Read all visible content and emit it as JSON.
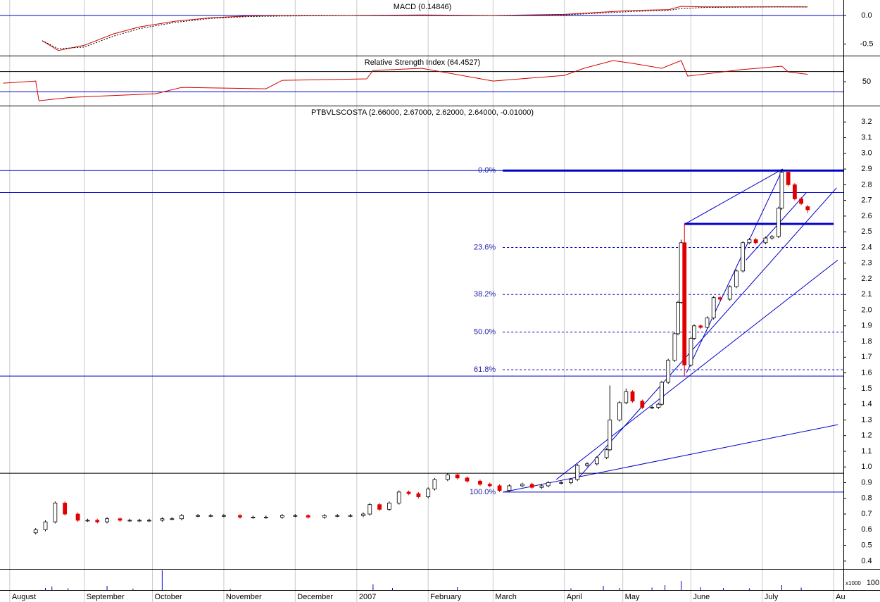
{
  "chart_data": [
    {
      "type": "line",
      "title": "MACD (0.14846)",
      "xlim": [
        -11,
        249
      ],
      "ylim": [
        -0.7,
        0.27
      ],
      "yticks": [
        {
          "value": 0,
          "label": "0.0"
        },
        -0.5
      ],
      "zero_line": 0,
      "x": [
        2,
        7,
        15,
        24,
        32,
        43,
        54,
        65,
        76,
        97,
        119,
        141,
        163,
        184,
        195,
        199,
        206,
        228,
        238
      ],
      "series": [
        {
          "name": "MACD",
          "color": "#d40000",
          "dash": false,
          "values": [
            -0.44,
            -0.61,
            -0.52,
            -0.32,
            -0.2,
            -0.1,
            -0.04,
            -0.01,
            0,
            0,
            0.01,
            0,
            0.02,
            0.09,
            0.1,
            0.16,
            0.15,
            0.15,
            0.148
          ]
        },
        {
          "name": "Signal",
          "color": "#000000",
          "dash": true,
          "values": [
            -0.44,
            -0.58,
            -0.55,
            -0.36,
            -0.23,
            -0.12,
            -0.05,
            -0.02,
            -0.01,
            0,
            0,
            0,
            0.01,
            0.07,
            0.09,
            0.12,
            0.14,
            0.15,
            0.15
          ]
        }
      ]
    },
    {
      "type": "line",
      "title": "Relative Strength Index (64.4527)",
      "xlim": [
        -11,
        249
      ],
      "ylim": [
        3,
        100
      ],
      "yticks": [
        50
      ],
      "levels": [
        70,
        30
      ],
      "x": [
        -10,
        0,
        1,
        11,
        37,
        45,
        71,
        76,
        102,
        104,
        119,
        141,
        163,
        169,
        178,
        184,
        193,
        199,
        201,
        217,
        230,
        232,
        238
      ],
      "series": [
        {
          "name": "RSI",
          "color": "#d40000",
          "dash": false,
          "values": [
            47.2,
            51.4,
            12.5,
            19.4,
            26.4,
            38.9,
            36.1,
            52.8,
            55.6,
            72.2,
            76.4,
            51.4,
            62.5,
            76.4,
            91.7,
            86.1,
            76.4,
            91.7,
            61.1,
            73.6,
            80.6,
            69.4,
            64.5
          ]
        }
      ]
    },
    {
      "type": "candlestick",
      "title": "PTBVLSCOSTA (2.66000, 2.67000, 2.62000, 2.64000, -0.01000)",
      "xlim": [
        -11,
        249
      ],
      "ylim": [
        0.35,
        3.3
      ],
      "yticks": [
        3.2,
        3.1,
        {
          "value": 3,
          "label": "3.0"
        },
        2.9,
        2.8,
        2.7,
        2.6,
        2.5,
        2.4,
        2.3,
        2.2,
        2.1,
        {
          "value": 2,
          "label": "2.0"
        },
        1.9,
        1.8,
        1.7,
        1.6,
        1.5,
        1.4,
        1.3,
        1.2,
        1.1,
        {
          "value": 1,
          "label": "1.0"
        },
        0.9,
        0.8,
        0.7,
        0.6,
        0.5,
        0.4
      ],
      "x": [
        0,
        3,
        6,
        9,
        13,
        16,
        19,
        22,
        26,
        29,
        32,
        35,
        39,
        42,
        45,
        50,
        54,
        58,
        63,
        67,
        71,
        76,
        80,
        84,
        89,
        93,
        97,
        101,
        103,
        106,
        109,
        112,
        115,
        118,
        121,
        123,
        127,
        130,
        133,
        137,
        140,
        143,
        146,
        150,
        153,
        156,
        158,
        162,
        165,
        167,
        170,
        173,
        176,
        177,
        180,
        182,
        184,
        187,
        190,
        192,
        193,
        195,
        197,
        198,
        199,
        200,
        202,
        203,
        205,
        207,
        209,
        211,
        214,
        216,
        218,
        220,
        222,
        225,
        227,
        229,
        230,
        232,
        234,
        236,
        238
      ],
      "open": [
        0.58,
        0.6,
        0.65,
        0.77,
        0.7,
        0.66,
        0.66,
        0.65,
        0.67,
        0.66,
        0.66,
        0.66,
        0.66,
        0.67,
        0.67,
        0.69,
        0.69,
        0.69,
        0.69,
        0.68,
        0.68,
        0.68,
        0.69,
        0.69,
        0.68,
        0.69,
        0.69,
        0.69,
        0.7,
        0.76,
        0.73,
        0.77,
        0.84,
        0.83,
        0.81,
        0.86,
        0.92,
        0.95,
        0.93,
        0.91,
        0.89,
        0.88,
        0.85,
        0.88,
        0.89,
        0.87,
        0.88,
        0.9,
        0.9,
        0.92,
        1.01,
        1.02,
        1.06,
        1.11,
        1.3,
        1.41,
        1.48,
        1.42,
        1.38,
        1.38,
        1.4,
        1.54,
        1.68,
        1.85,
        2.05,
        2.43,
        1.65,
        1.82,
        1.9,
        1.89,
        1.95,
        2.08,
        2.07,
        2.15,
        2.25,
        2.43,
        2.45,
        2.43,
        2.46,
        2.47,
        2.65,
        2.88,
        2.8,
        2.71,
        2.66
      ],
      "high": [
        0.61,
        0.66,
        0.78,
        0.78,
        0.71,
        0.67,
        0.67,
        0.68,
        0.68,
        0.67,
        0.67,
        0.67,
        0.68,
        0.68,
        0.7,
        0.7,
        0.7,
        0.7,
        0.7,
        0.69,
        0.69,
        0.7,
        0.7,
        0.7,
        0.7,
        0.7,
        0.7,
        0.71,
        0.77,
        0.77,
        0.78,
        0.85,
        0.85,
        0.84,
        0.87,
        0.93,
        0.96,
        0.96,
        0.94,
        0.92,
        0.9,
        0.89,
        0.89,
        0.9,
        0.9,
        0.89,
        0.91,
        0.91,
        0.93,
        1.02,
        1.03,
        1.07,
        1.12,
        1.52,
        1.42,
        1.5,
        1.49,
        1.43,
        1.39,
        1.41,
        1.55,
        1.69,
        1.86,
        2.06,
        2.45,
        2.55,
        1.83,
        1.91,
        1.91,
        1.96,
        2.09,
        2.09,
        2.16,
        2.26,
        2.44,
        2.46,
        2.46,
        2.47,
        2.48,
        2.66,
        2.9,
        2.89,
        2.81,
        2.72,
        2.67
      ],
      "low": [
        0.57,
        0.59,
        0.64,
        0.69,
        0.65,
        0.65,
        0.64,
        0.64,
        0.65,
        0.65,
        0.65,
        0.65,
        0.65,
        0.66,
        0.66,
        0.68,
        0.68,
        0.68,
        0.67,
        0.67,
        0.67,
        0.67,
        0.68,
        0.67,
        0.67,
        0.68,
        0.68,
        0.68,
        0.69,
        0.72,
        0.72,
        0.76,
        0.82,
        0.8,
        0.8,
        0.85,
        0.91,
        0.92,
        0.9,
        0.88,
        0.87,
        0.84,
        0.84,
        0.87,
        0.86,
        0.86,
        0.87,
        0.89,
        0.89,
        0.91,
        1.0,
        1.01,
        1.05,
        1.1,
        1.29,
        1.4,
        1.41,
        1.37,
        1.37,
        1.37,
        1.39,
        1.53,
        1.67,
        1.84,
        2.04,
        1.58,
        1.64,
        1.81,
        1.88,
        1.88,
        1.94,
        2.06,
        2.06,
        2.14,
        2.24,
        2.42,
        2.42,
        2.42,
        2.45,
        2.46,
        2.64,
        2.79,
        2.7,
        2.67,
        2.62
      ],
      "close": [
        0.6,
        0.65,
        0.77,
        0.7,
        0.66,
        0.66,
        0.65,
        0.67,
        0.66,
        0.66,
        0.66,
        0.66,
        0.67,
        0.67,
        0.69,
        0.69,
        0.69,
        0.69,
        0.68,
        0.68,
        0.68,
        0.69,
        0.69,
        0.68,
        0.69,
        0.69,
        0.69,
        0.7,
        0.76,
        0.73,
        0.77,
        0.84,
        0.83,
        0.81,
        0.86,
        0.92,
        0.95,
        0.93,
        0.91,
        0.89,
        0.88,
        0.85,
        0.88,
        0.89,
        0.87,
        0.88,
        0.9,
        0.9,
        0.92,
        1.01,
        1.02,
        1.06,
        1.11,
        1.3,
        1.41,
        1.48,
        1.42,
        1.38,
        1.38,
        1.4,
        1.54,
        1.68,
        1.85,
        2.05,
        2.43,
        1.65,
        1.82,
        1.9,
        1.89,
        1.95,
        2.08,
        2.07,
        2.15,
        2.25,
        2.43,
        2.45,
        2.43,
        2.46,
        2.47,
        2.65,
        2.88,
        2.8,
        2.71,
        2.68,
        2.64
      ],
      "hlines": [
        2.89,
        2.75,
        1.58,
        0.96
      ],
      "thick_lines": [
        {
          "x": [
            144,
            249
          ],
          "value": 2.89
        },
        {
          "x": [
            200,
            246
          ],
          "value": 2.55
        }
      ],
      "trendlines": [
        [
          [
            144.2,
            0.84
          ],
          [
            247.3,
            1.27
          ]
        ],
        [
          [
            160.5,
            0.92
          ],
          [
            247.3,
            2.32
          ]
        ],
        [
          [
            166.9,
            0.92
          ],
          [
            246.9,
            2.78
          ]
        ],
        [
          [
            200.6,
            1.6
          ],
          [
            230.3,
            2.9
          ]
        ],
        [
          [
            200.2,
            2.55
          ],
          [
            230.3,
            2.9
          ]
        ],
        [
          [
            219,
            2.32
          ],
          [
            237.6,
            2.75
          ]
        ]
      ],
      "fibonacci": {
        "start": 144,
        "levels": [
          {
            "label": "0.0%",
            "value": 2.89
          },
          {
            "label": "23.6%",
            "value": 2.4
          },
          {
            "label": "38.2%",
            "value": 2.1
          },
          {
            "label": "50.0%",
            "value": 1.86
          },
          {
            "label": "61.8%",
            "value": 1.62
          },
          {
            "label": "100.0%",
            "value": 0.84
          }
        ]
      }
    },
    {
      "type": "bar",
      "unit_label": "x1000",
      "xlim": [
        -11,
        249
      ],
      "ylim": [
        0,
        300
      ],
      "yticks": [
        100
      ],
      "x": [
        3,
        5,
        10,
        22,
        30,
        39,
        60,
        104,
        110,
        130,
        165,
        175,
        180,
        190,
        194,
        199,
        205,
        212,
        220,
        230,
        236
      ],
      "values": [
        30,
        50,
        25,
        60,
        20,
        280,
        15,
        80,
        30,
        40,
        25,
        60,
        30,
        35,
        70,
        130,
        40,
        30,
        25,
        70,
        35
      ],
      "xticks": [
        {
          "value": -8,
          "label": "August"
        },
        {
          "value": 15,
          "label": "September"
        },
        {
          "value": 36,
          "label": "October"
        },
        {
          "value": 58,
          "label": "November"
        },
        {
          "value": 80,
          "label": "December"
        },
        {
          "value": 99,
          "label": "2007"
        },
        {
          "value": 121,
          "label": "February"
        },
        {
          "value": 141,
          "label": "March"
        },
        {
          "value": 163,
          "label": "April"
        },
        {
          "value": 181,
          "label": "May"
        },
        {
          "value": 202,
          "label": "June"
        },
        {
          "value": 224,
          "label": "July"
        },
        {
          "value": 246,
          "label": "Au"
        }
      ]
    }
  ]
}
